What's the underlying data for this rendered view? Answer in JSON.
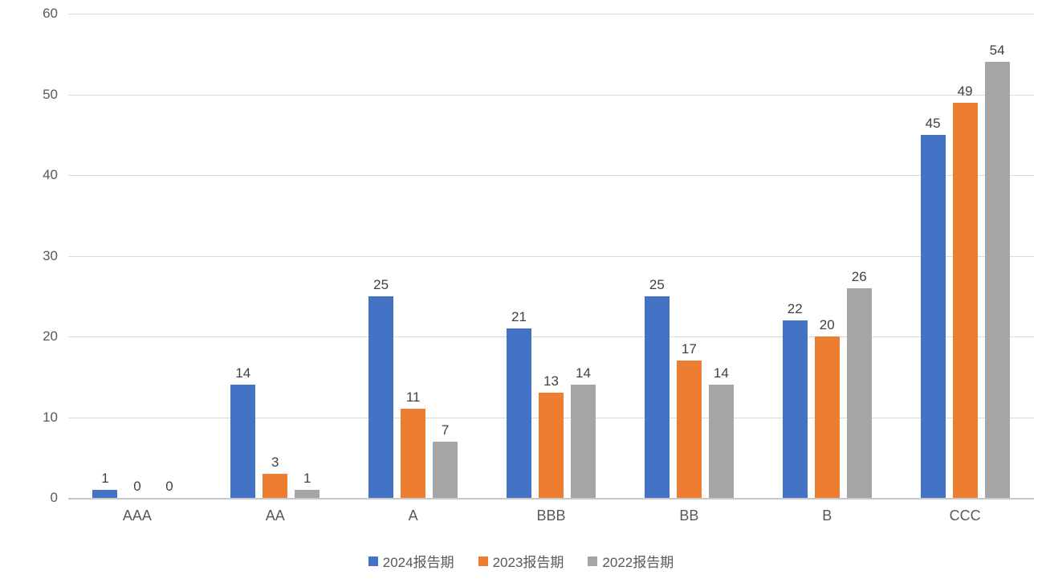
{
  "chart_data": {
    "type": "bar",
    "title": "",
    "xlabel": "",
    "ylabel": "",
    "categories": [
      "AAA",
      "AA",
      "A",
      "BBB",
      "BB",
      "B",
      "CCC"
    ],
    "series": [
      {
        "name": "2024报告期",
        "color": "#4472C4",
        "values": [
          1,
          14,
          25,
          21,
          25,
          22,
          45
        ]
      },
      {
        "name": "2023报告期",
        "color": "#ED7D31",
        "values": [
          0,
          3,
          11,
          13,
          17,
          20,
          49
        ]
      },
      {
        "name": "2022报告期",
        "color": "#A5A5A5",
        "values": [
          0,
          1,
          7,
          14,
          14,
          26,
          54
        ]
      }
    ],
    "y_ticks": [
      0,
      10,
      20,
      30,
      40,
      50,
      60
    ],
    "ylim": [
      0,
      60
    ],
    "grid": "horizontal",
    "gridline_color": "#d9d9d9",
    "axis_line_color": "#c7c7c7",
    "tick_label_color": "#595959",
    "value_label_color": "#404040",
    "legend_position": "bottom",
    "data_labels": true,
    "background": "#ffffff"
  }
}
